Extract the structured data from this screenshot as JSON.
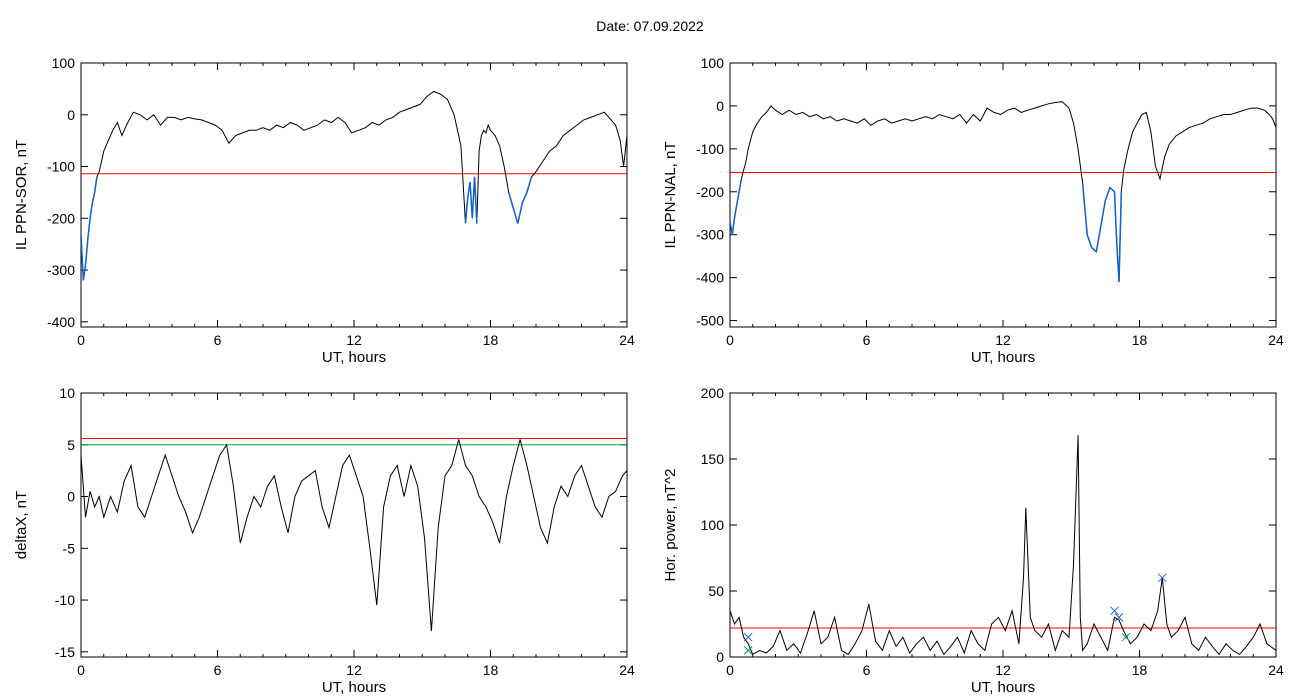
{
  "header": {
    "title": "Date:  07.09.2022"
  },
  "chart_data": [
    {
      "type": "line",
      "xlabel": "UT, hours",
      "ylabel": "IL PPN-SOR, nT",
      "xlim": [
        0,
        24
      ],
      "ylim": [
        -410,
        100
      ],
      "xticks": [
        "0",
        "6",
        "12",
        "18",
        "24"
      ],
      "yticks": [
        "100",
        "0",
        "-100",
        "-200",
        "-300",
        "-400"
      ],
      "threshold": {
        "value": -114,
        "color": "#ff0000"
      },
      "colors": {
        "line": "#000000",
        "below_threshold": "#1060d0"
      },
      "series": [
        {
          "x": [
            0,
            0.1,
            0.2,
            0.3,
            0.4,
            0.5,
            0.6,
            0.7,
            0.8,
            0.9,
            1.0,
            1.2,
            1.4,
            1.6,
            1.8,
            2.0,
            2.3,
            2.6,
            2.9,
            3.2,
            3.5,
            3.8,
            4.1,
            4.4,
            4.7,
            5.0,
            5.3,
            5.6,
            5.9,
            6.2,
            6.5,
            6.8,
            7.1,
            7.4,
            7.7,
            8.0,
            8.3,
            8.6,
            8.9,
            9.2,
            9.5,
            9.8,
            10.1,
            10.4,
            10.7,
            11.0,
            11.3,
            11.6,
            11.9,
            12.2,
            12.5,
            12.8,
            13.1,
            13.4,
            13.7,
            14.0,
            14.3,
            14.6,
            14.9,
            15.2,
            15.5,
            15.8,
            16.1,
            16.4,
            16.7,
            16.9,
            17.0,
            17.1,
            17.2,
            17.3,
            17.4,
            17.5,
            17.6,
            17.7,
            17.8,
            17.9,
            18.0,
            18.2,
            18.4,
            18.6,
            18.8,
            19.0,
            19.2,
            19.4,
            19.6,
            19.8,
            20.0,
            20.3,
            20.6,
            20.9,
            21.2,
            21.5,
            21.8,
            22.1,
            22.4,
            22.7,
            23.0,
            23.3,
            23.5,
            23.7,
            23.85,
            24.0
          ],
          "y": [
            -230,
            -320,
            -290,
            -240,
            -200,
            -170,
            -150,
            -120,
            -110,
            -90,
            -70,
            -50,
            -30,
            -15,
            -40,
            -20,
            5,
            0,
            -10,
            0,
            -20,
            -5,
            -5,
            -10,
            -5,
            -8,
            -10,
            -15,
            -20,
            -30,
            -55,
            -40,
            -35,
            -30,
            -30,
            -25,
            -30,
            -20,
            -25,
            -15,
            -20,
            -30,
            -25,
            -20,
            -10,
            -15,
            -5,
            -15,
            -35,
            -30,
            -25,
            -15,
            -20,
            -10,
            -5,
            5,
            10,
            15,
            20,
            35,
            45,
            40,
            30,
            0,
            -60,
            -210,
            -160,
            -130,
            -200,
            -120,
            -210,
            -70,
            -40,
            -30,
            -35,
            -20,
            -30,
            -40,
            -60,
            -100,
            -150,
            -180,
            -210,
            -170,
            -150,
            -120,
            -110,
            -90,
            -70,
            -60,
            -40,
            -30,
            -20,
            -10,
            -5,
            0,
            5,
            -10,
            -20,
            -50,
            -100,
            -40
          ]
        }
      ]
    },
    {
      "type": "line",
      "xlabel": "UT, hours",
      "ylabel": "IL PPN-NAL, nT",
      "xlim": [
        0,
        24
      ],
      "ylim": [
        -515,
        100
      ],
      "xticks": [
        "0",
        "6",
        "12",
        "18",
        "24"
      ],
      "yticks": [
        "100",
        "0",
        "-100",
        "-200",
        "-300",
        "-400",
        "-500"
      ],
      "threshold": {
        "value": -155,
        "color": "#ff0000"
      },
      "colors": {
        "line": "#000000",
        "below_threshold": "#1060d0"
      },
      "series": [
        {
          "x": [
            0,
            0.1,
            0.2,
            0.3,
            0.4,
            0.5,
            0.6,
            0.7,
            0.8,
            0.9,
            1.0,
            1.2,
            1.4,
            1.6,
            1.8,
            2.0,
            2.3,
            2.6,
            2.9,
            3.2,
            3.5,
            3.8,
            4.1,
            4.4,
            4.7,
            5.0,
            5.3,
            5.6,
            5.9,
            6.2,
            6.5,
            6.8,
            7.1,
            7.4,
            7.7,
            8.0,
            8.3,
            8.6,
            8.9,
            9.2,
            9.5,
            9.8,
            10.1,
            10.4,
            10.7,
            11.0,
            11.3,
            11.6,
            11.9,
            12.2,
            12.5,
            12.8,
            13.1,
            13.4,
            13.7,
            14.0,
            14.3,
            14.6,
            14.9,
            15.1,
            15.3,
            15.5,
            15.7,
            15.9,
            16.1,
            16.3,
            16.5,
            16.7,
            16.9,
            17.0,
            17.1,
            17.2,
            17.3,
            17.5,
            17.7,
            17.9,
            18.1,
            18.3,
            18.5,
            18.7,
            18.9,
            19.1,
            19.3,
            19.6,
            19.9,
            20.2,
            20.5,
            20.8,
            21.1,
            21.4,
            21.7,
            22.0,
            22.3,
            22.6,
            22.9,
            23.2,
            23.5,
            23.7,
            23.85,
            24.0
          ],
          "y": [
            -270,
            -300,
            -260,
            -230,
            -200,
            -170,
            -150,
            -130,
            -100,
            -80,
            -60,
            -40,
            -25,
            -15,
            0,
            -10,
            -20,
            -10,
            -20,
            -15,
            -25,
            -20,
            -30,
            -25,
            -35,
            -30,
            -35,
            -40,
            -30,
            -45,
            -35,
            -30,
            -40,
            -35,
            -30,
            -35,
            -30,
            -25,
            -30,
            -20,
            -25,
            -30,
            -20,
            -40,
            -20,
            -35,
            -5,
            -15,
            -20,
            -10,
            -5,
            -15,
            -10,
            -5,
            0,
            5,
            8,
            10,
            -5,
            -40,
            -100,
            -180,
            -300,
            -330,
            -340,
            -280,
            -220,
            -190,
            -200,
            -320,
            -410,
            -200,
            -150,
            -100,
            -60,
            -40,
            -20,
            -15,
            -60,
            -140,
            -170,
            -120,
            -90,
            -70,
            -60,
            -50,
            -45,
            -40,
            -30,
            -25,
            -20,
            -20,
            -15,
            -10,
            -5,
            -5,
            -10,
            -20,
            -30,
            -50
          ]
        }
      ]
    },
    {
      "type": "line",
      "xlabel": "UT, hours",
      "ylabel": "deltaX, nT",
      "xlim": [
        0,
        24
      ],
      "ylim": [
        -15.5,
        10
      ],
      "xticks": [
        "0",
        "6",
        "12",
        "18",
        "24"
      ],
      "yticks": [
        "10",
        "5",
        "0",
        "-5",
        "-10",
        "-15"
      ],
      "thresholds": [
        {
          "value": 5.6,
          "color": "#ff0000"
        },
        {
          "value": 5.0,
          "color": "#00a050"
        }
      ],
      "colors": {
        "line": "#000000"
      },
      "series": [
        {
          "x": [
            0,
            0.2,
            0.4,
            0.6,
            0.8,
            1.0,
            1.3,
            1.6,
            1.9,
            2.2,
            2.5,
            2.8,
            3.1,
            3.4,
            3.7,
            4.0,
            4.3,
            4.6,
            4.9,
            5.2,
            5.5,
            5.8,
            6.1,
            6.4,
            6.7,
            7.0,
            7.3,
            7.6,
            7.9,
            8.2,
            8.5,
            8.8,
            9.1,
            9.4,
            9.7,
            10.0,
            10.3,
            10.6,
            10.9,
            11.2,
            11.5,
            11.8,
            12.1,
            12.4,
            12.7,
            13.0,
            13.3,
            13.6,
            13.9,
            14.2,
            14.5,
            14.8,
            15.1,
            15.4,
            15.7,
            16.0,
            16.3,
            16.6,
            16.9,
            17.2,
            17.5,
            17.8,
            18.1,
            18.4,
            18.7,
            19.0,
            19.3,
            19.6,
            19.9,
            20.2,
            20.5,
            20.8,
            21.1,
            21.4,
            21.7,
            22.0,
            22.3,
            22.6,
            22.9,
            23.2,
            23.5,
            23.8,
            24.0
          ],
          "y": [
            4,
            -2,
            0.5,
            -1,
            0,
            -2,
            0,
            -1.5,
            1.5,
            3,
            -1,
            -2,
            0,
            2,
            4,
            2,
            0,
            -1.5,
            -3.5,
            -2,
            0,
            2,
            4,
            5,
            1,
            -4.5,
            -2,
            0,
            -1,
            1,
            2,
            -1,
            -3.5,
            0,
            1.5,
            2,
            2.5,
            -1,
            -3,
            0,
            3,
            4,
            2,
            0,
            -5,
            -10.5,
            -1,
            2,
            3,
            0,
            3,
            1,
            -4,
            -13,
            -3,
            2,
            3,
            5.5,
            3,
            2,
            0,
            -1,
            -2.5,
            -4.5,
            0,
            3,
            5.5,
            3,
            0,
            -3,
            -4.5,
            -1,
            1,
            0,
            2,
            3,
            1,
            -1,
            -2,
            0,
            0.5,
            2,
            2.5
          ]
        }
      ]
    },
    {
      "type": "line",
      "xlabel": "UT, hours",
      "ylabel": "Hor. power, nT^2",
      "xlim": [
        0,
        24
      ],
      "ylim": [
        0,
        200
      ],
      "xticks": [
        "0",
        "6",
        "12",
        "18",
        "24"
      ],
      "yticks": [
        "200",
        "150",
        "100",
        "50",
        "0"
      ],
      "threshold": {
        "value": 22,
        "color": "#ff0000"
      },
      "colors": {
        "line": "#000000",
        "markers": "#2060e0",
        "markers_secondary": "#00a050"
      },
      "series": [
        {
          "x": [
            0,
            0.2,
            0.4,
            0.6,
            0.8,
            1.0,
            1.3,
            1.6,
            1.9,
            2.2,
            2.5,
            2.8,
            3.1,
            3.4,
            3.7,
            4.0,
            4.3,
            4.6,
            4.9,
            5.2,
            5.5,
            5.8,
            6.1,
            6.4,
            6.7,
            7.0,
            7.3,
            7.6,
            7.9,
            8.2,
            8.5,
            8.8,
            9.1,
            9.4,
            9.7,
            10.0,
            10.3,
            10.6,
            10.9,
            11.2,
            11.5,
            11.8,
            12.1,
            12.4,
            12.7,
            12.9,
            13.0,
            13.2,
            13.4,
            13.7,
            14.0,
            14.3,
            14.6,
            14.9,
            15.1,
            15.3,
            15.4,
            15.5,
            15.7,
            16.0,
            16.3,
            16.6,
            16.9,
            17.1,
            17.3,
            17.6,
            17.9,
            18.2,
            18.5,
            18.8,
            19.0,
            19.2,
            19.4,
            19.7,
            20.0,
            20.3,
            20.6,
            20.9,
            21.2,
            21.5,
            21.8,
            22.1,
            22.4,
            22.7,
            23.0,
            23.3,
            23.6,
            24.0
          ],
          "y": [
            35,
            25,
            30,
            15,
            10,
            2,
            5,
            3,
            8,
            20,
            5,
            10,
            3,
            18,
            35,
            10,
            15,
            30,
            5,
            2,
            10,
            20,
            40,
            12,
            5,
            20,
            8,
            15,
            3,
            10,
            15,
            5,
            12,
            2,
            8,
            15,
            3,
            20,
            10,
            5,
            25,
            30,
            20,
            35,
            10,
            60,
            113,
            30,
            20,
            15,
            25,
            5,
            20,
            15,
            70,
            168,
            30,
            5,
            10,
            25,
            15,
            5,
            30,
            28,
            20,
            10,
            15,
            25,
            20,
            35,
            60,
            25,
            15,
            20,
            30,
            10,
            5,
            15,
            8,
            2,
            10,
            5,
            2,
            8,
            15,
            25,
            10,
            5
          ]
        }
      ],
      "markers": [
        {
          "x": 0.8,
          "y": 15,
          "color": "#2060e0"
        },
        {
          "x": 16.9,
          "y": 35,
          "color": "#2060e0"
        },
        {
          "x": 17.1,
          "y": 30,
          "color": "#2060e0"
        },
        {
          "x": 19.0,
          "y": 60,
          "color": "#2060e0"
        },
        {
          "x": 0.8,
          "y": 5,
          "color": "#00a050"
        },
        {
          "x": 17.4,
          "y": 15,
          "color": "#00a050"
        }
      ]
    }
  ]
}
